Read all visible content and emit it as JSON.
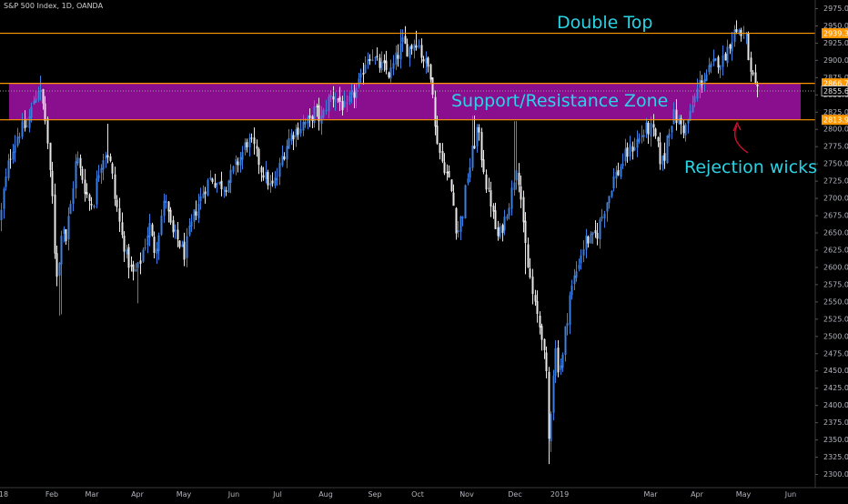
{
  "header": {
    "symbol_title": "S&P 500 Index, 1D, OANDA"
  },
  "colors": {
    "background": "#000000",
    "candle_up": "#3d7fe0",
    "candle_down": "#e8e8e8",
    "orange_line": "#ff9800",
    "zone_fill": "#8a0f8e",
    "annotation_text": "#29d4e6",
    "arrow": "#c8102e",
    "axis_text": "#b2b5be"
  },
  "annotations": {
    "double_top": "Double Top",
    "zone": "Support/Resistance Zone",
    "rejection": "Rejection wicks"
  },
  "chart_data": {
    "type": "candlestick",
    "title": "S&P 500 Index, 1D, OANDA",
    "ylim": [
      2287.5,
      2987.5
    ],
    "y_ticks": [
      2300,
      2325,
      2350,
      2375,
      2400,
      2425,
      2450,
      2475,
      2500,
      2525,
      2550,
      2575,
      2600,
      2625,
      2650,
      2675,
      2700,
      2725,
      2750,
      2775,
      2800,
      2825,
      2850,
      2875,
      2900,
      2925,
      2950,
      2975
    ],
    "y_tick_labels": [
      "2300.0",
      "2325.0",
      "2350.0",
      "2375.0",
      "2400.0",
      "2425.0",
      "2450.0",
      "2475.0",
      "2500.0",
      "2525.0",
      "2550.0",
      "2575.0",
      "2600.0",
      "2625.0",
      "2650.0",
      "2675.0",
      "2700.0",
      "2725.0",
      "2750.0",
      "2775.0",
      "2800.0",
      "2825.0",
      "2850.0",
      "2875.0",
      "2900.0",
      "2925.0",
      "2950.0",
      "2975.0"
    ],
    "x_labels": [
      "18",
      "Feb",
      "Mar",
      "Apr",
      "May",
      "Jun",
      "Jul",
      "Aug",
      "Sep",
      "Oct",
      "Nov",
      "Dec",
      "2019",
      "Mar",
      "Apr",
      "May",
      "Jun"
    ],
    "price_tags": [
      {
        "label": "2939.3",
        "value": 2939.3,
        "kind": "orange"
      },
      {
        "label": "2866.7",
        "value": 2866.7,
        "kind": "orange"
      },
      {
        "label": "2855.6",
        "value": 2855.6,
        "kind": "current"
      },
      {
        "label": "2813.9",
        "value": 2813.9,
        "kind": "orange"
      }
    ],
    "horizontal_lines": [
      2939.3,
      2866.7,
      2813.9
    ],
    "zone": {
      "top": 2866.7,
      "bottom": 2813.9
    },
    "current_price": 2855.6,
    "path_anchors": [
      [
        0,
        2670
      ],
      [
        5,
        2720
      ],
      [
        12,
        2770
      ],
      [
        22,
        2800
      ],
      [
        30,
        2805
      ],
      [
        36,
        2840
      ],
      [
        42,
        2860
      ],
      [
        47,
        2835
      ],
      [
        52,
        2780
      ],
      [
        57,
        2700
      ],
      [
        61,
        2600
      ],
      [
        64,
        2580
      ],
      [
        68,
        2680
      ],
      [
        72,
        2640
      ],
      [
        78,
        2700
      ],
      [
        84,
        2760
      ],
      [
        90,
        2730
      ],
      [
        96,
        2700
      ],
      [
        102,
        2690
      ],
      [
        108,
        2740
      ],
      [
        115,
        2770
      ],
      [
        120,
        2760
      ],
      [
        126,
        2700
      ],
      [
        133,
        2650
      ],
      [
        140,
        2610
      ],
      [
        146,
        2590
      ],
      [
        152,
        2600
      ],
      [
        158,
        2630
      ],
      [
        164,
        2660
      ],
      [
        170,
        2620
      ],
      [
        176,
        2670
      ],
      [
        182,
        2700
      ],
      [
        188,
        2650
      ],
      [
        195,
        2640
      ],
      [
        202,
        2620
      ],
      [
        208,
        2650
      ],
      [
        214,
        2680
      ],
      [
        220,
        2700
      ],
      [
        226,
        2720
      ],
      [
        232,
        2730
      ],
      [
        240,
        2720
      ],
      [
        248,
        2720
      ],
      [
        256,
        2740
      ],
      [
        264,
        2760
      ],
      [
        272,
        2785
      ],
      [
        280,
        2770
      ],
      [
        286,
        2745
      ],
      [
        292,
        2730
      ],
      [
        298,
        2715
      ],
      [
        304,
        2730
      ],
      [
        310,
        2760
      ],
      [
        318,
        2790
      ],
      [
        326,
        2800
      ],
      [
        334,
        2810
      ],
      [
        340,
        2810
      ],
      [
        346,
        2830
      ],
      [
        352,
        2810
      ],
      [
        358,
        2835
      ],
      [
        364,
        2850
      ],
      [
        370,
        2845
      ],
      [
        376,
        2835
      ],
      [
        380,
        2825
      ],
      [
        384,
        2840
      ],
      [
        390,
        2855
      ],
      [
        396,
        2870
      ],
      [
        402,
        2905
      ],
      [
        408,
        2910
      ],
      [
        414,
        2895
      ],
      [
        420,
        2890
      ],
      [
        428,
        2880
      ],
      [
        436,
        2905
      ],
      [
        442,
        2925
      ],
      [
        448,
        2915
      ],
      [
        454,
        2925
      ],
      [
        458,
        2930
      ],
      [
        464,
        2905
      ],
      [
        470,
        2890
      ],
      [
        474,
        2880
      ],
      [
        478,
        2800
      ],
      [
        484,
        2760
      ],
      [
        490,
        2740
      ],
      [
        496,
        2710
      ],
      [
        502,
        2650
      ],
      [
        508,
        2680
      ],
      [
        512,
        2720
      ],
      [
        518,
        2760
      ],
      [
        524,
        2800
      ],
      [
        528,
        2770
      ],
      [
        534,
        2720
      ],
      [
        540,
        2690
      ],
      [
        546,
        2640
      ],
      [
        552,
        2660
      ],
      [
        558,
        2690
      ],
      [
        564,
        2720
      ],
      [
        568,
        2760
      ],
      [
        572,
        2700
      ],
      [
        576,
        2640
      ],
      [
        580,
        2600
      ],
      [
        585,
        2560
      ],
      [
        590,
        2530
      ],
      [
        596,
        2500
      ],
      [
        600,
        2440
      ],
      [
        603,
        2350
      ],
      [
        606,
        2420
      ],
      [
        610,
        2480
      ],
      [
        614,
        2450
      ],
      [
        618,
        2470
      ],
      [
        622,
        2520
      ],
      [
        626,
        2560
      ],
      [
        632,
        2590
      ],
      [
        638,
        2620
      ],
      [
        644,
        2640
      ],
      [
        650,
        2640
      ],
      [
        656,
        2650
      ],
      [
        662,
        2680
      ],
      [
        668,
        2700
      ],
      [
        674,
        2730
      ],
      [
        680,
        2740
      ],
      [
        686,
        2760
      ],
      [
        692,
        2770
      ],
      [
        698,
        2780
      ],
      [
        704,
        2790
      ],
      [
        710,
        2800
      ],
      [
        716,
        2800
      ],
      [
        722,
        2780
      ],
      [
        726,
        2750
      ],
      [
        730,
        2760
      ],
      [
        734,
        2800
      ],
      [
        740,
        2820
      ],
      [
        746,
        2810
      ],
      [
        752,
        2800
      ],
      [
        758,
        2820
      ],
      [
        764,
        2850
      ],
      [
        770,
        2870
      ],
      [
        776,
        2880
      ],
      [
        782,
        2890
      ],
      [
        788,
        2900
      ],
      [
        794,
        2900
      ],
      [
        800,
        2920
      ],
      [
        806,
        2940
      ],
      [
        812,
        2945
      ],
      [
        816,
        2930
      ],
      [
        820,
        2930
      ],
      [
        824,
        2880
      ],
      [
        828,
        2870
      ],
      [
        831,
        2850
      ],
      [
        834,
        2855
      ]
    ]
  }
}
